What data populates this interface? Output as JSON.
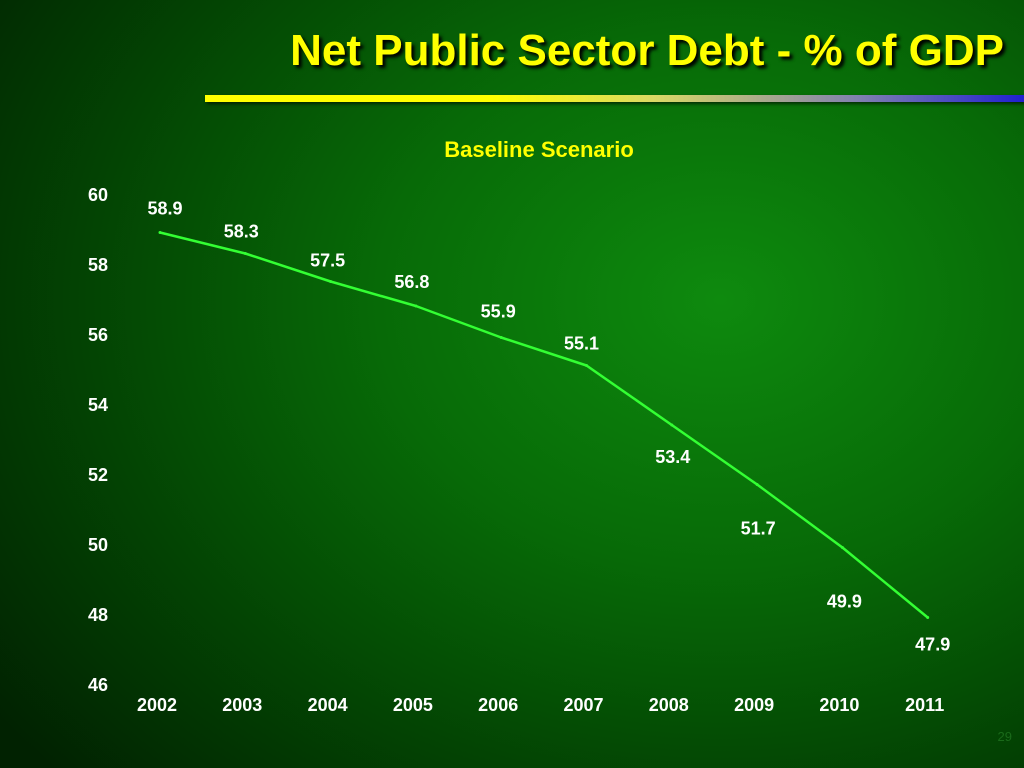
{
  "slide": {
    "title": "Net Public Sector Debt - % of GDP",
    "page_number": "29"
  },
  "colors": {
    "background": "#076a07",
    "title": "#ffff00",
    "line": "#33ff33",
    "text": "#ffffff"
  },
  "chart_data": {
    "type": "line",
    "title": "Baseline Scenario",
    "xlabel": "",
    "ylabel": "",
    "categories": [
      "2002",
      "2003",
      "2004",
      "2005",
      "2006",
      "2007",
      "2008",
      "2009",
      "2010",
      "2011"
    ],
    "series": [
      {
        "values": [
          58.9,
          58.3,
          57.5,
          56.8,
          55.9,
          55.1,
          53.4,
          51.7,
          49.9,
          47.9
        ]
      }
    ],
    "data_labels": [
      "58.9",
      "58.3",
      "57.5",
      "56.8",
      "55.9",
      "55.1",
      "53.4",
      "51.7",
      "49.9",
      "47.9"
    ],
    "ylim": [
      46,
      60
    ],
    "yticks": [
      46,
      48,
      50,
      52,
      54,
      56,
      58,
      60
    ],
    "grid": false,
    "legend": "none"
  }
}
